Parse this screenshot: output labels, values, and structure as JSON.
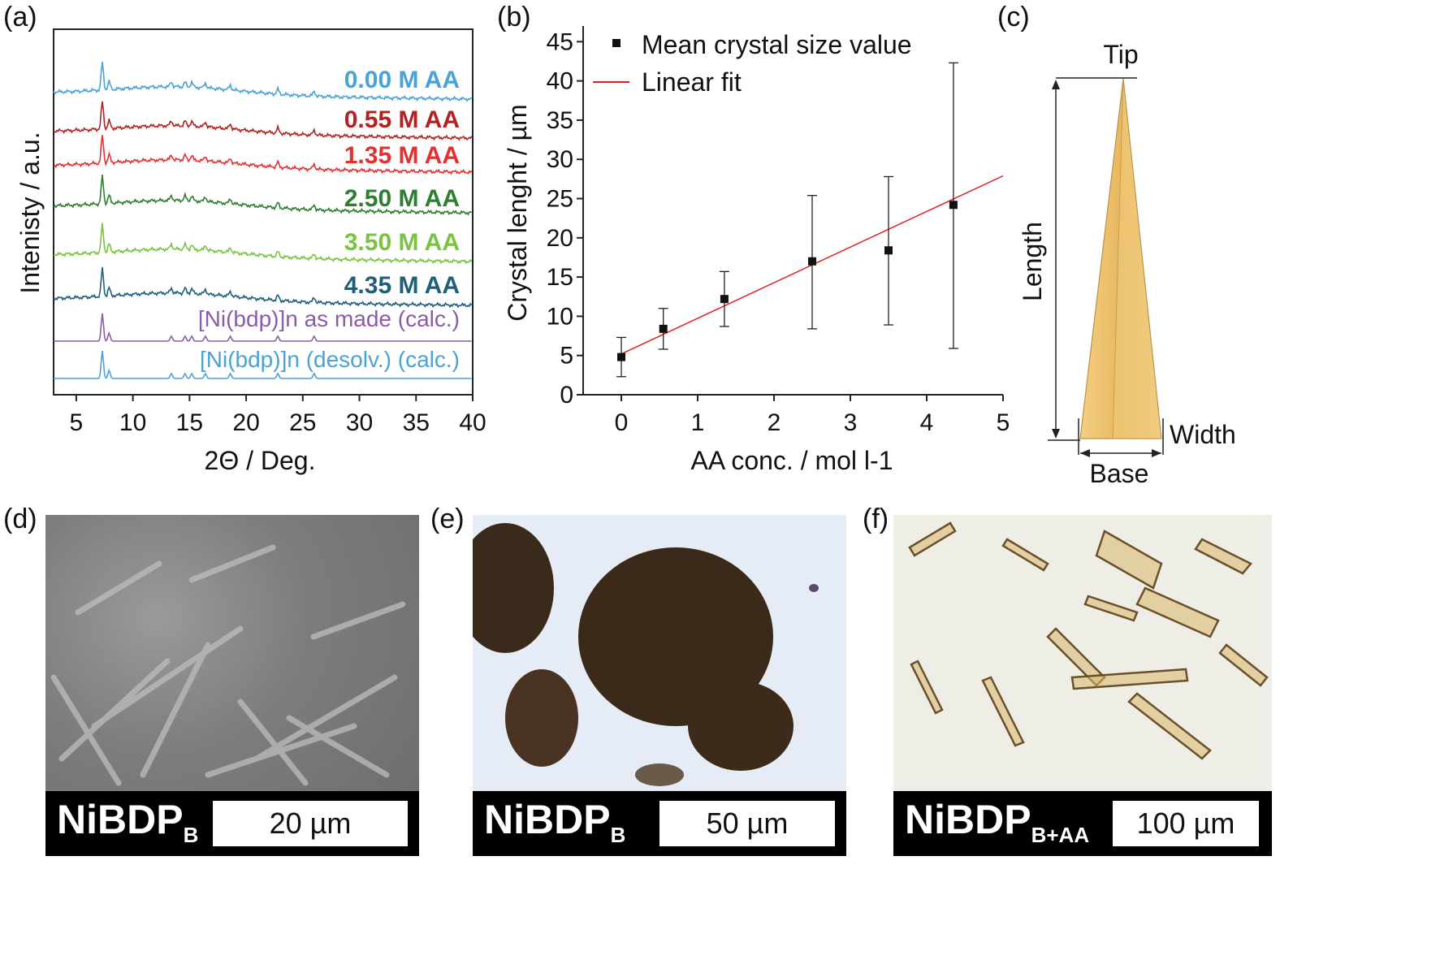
{
  "panels": {
    "a": "(a)",
    "b": "(b)",
    "c": "(c)",
    "d": "(d)",
    "e": "(e)",
    "f": "(f)"
  },
  "chart_data": [
    {
      "type": "line",
      "panel": "(a)",
      "xlabel": "2Θ / Deg.",
      "ylabel": "Intenisty / a.u.",
      "xlim": [
        3,
        40
      ],
      "xticks": [
        5,
        10,
        15,
        20,
        25,
        30,
        35,
        40
      ],
      "series": [
        {
          "name": "0.00 M AA",
          "color": "#4aa3d6"
        },
        {
          "name": "0.55 M AA",
          "color": "#b22222"
        },
        {
          "name": "1.35 M AA",
          "color": "#e53030"
        },
        {
          "name": "2.50 M AA",
          "color": "#2e7d32"
        },
        {
          "name": "3.50 M AA",
          "color": "#7cc242"
        },
        {
          "name": "4.35 M AA",
          "color": "#1f5f7a"
        },
        {
          "name": "[Ni(bdp)]n as made (calc.)",
          "color": "#8a5ca8"
        },
        {
          "name": "[Ni(bdp)]n (desolv.) (calc.)",
          "color": "#4aa3d6"
        }
      ]
    },
    {
      "type": "scatter",
      "panel": "(b)",
      "xlabel": "AA conc. / mol l-1",
      "ylabel": "Crystal lenght / µm",
      "xlim": [
        -0.5,
        5
      ],
      "ylim": [
        0,
        47
      ],
      "xticks": [
        0,
        1,
        2,
        3,
        4,
        5
      ],
      "yticks": [
        0,
        5,
        10,
        15,
        20,
        25,
        30,
        35,
        40,
        45
      ],
      "legend": [
        "Mean crystal size value",
        "Linear fit"
      ],
      "legend_position": "top-left",
      "x": [
        0.0,
        0.55,
        1.35,
        2.5,
        3.5,
        4.35
      ],
      "y": [
        4.8,
        8.4,
        12.2,
        17.0,
        18.4,
        24.2
      ],
      "yerr_low": [
        2.3,
        5.8,
        8.7,
        8.4,
        8.9,
        5.9
      ],
      "yerr_high": [
        7.3,
        11.0,
        15.7,
        25.4,
        27.8,
        42.3
      ],
      "fit": {
        "x": [
          0,
          5
        ],
        "y": [
          5.2,
          27.9
        ],
        "color": "#e02020"
      }
    }
  ],
  "diagram_c": {
    "tip": "Tip",
    "length": "Length",
    "width": "Width",
    "base": "Base"
  },
  "micrographs": [
    {
      "sample": "NiBDP",
      "sub": "B",
      "scale": "20 µm"
    },
    {
      "sample": "NiBDP",
      "sub": "B",
      "scale": "50 µm"
    },
    {
      "sample": "NiBDP",
      "sub": "B+AA",
      "scale": "100 µm"
    }
  ]
}
